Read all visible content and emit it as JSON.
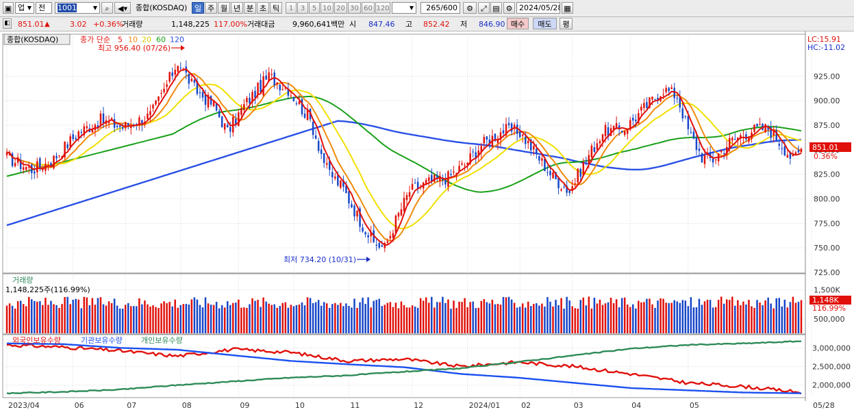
{
  "toolbar": {
    "market": "업",
    "period_short": "전",
    "code": "1001",
    "name": "종합(KOSDAQ)",
    "periods": [
      "일",
      "주",
      "월",
      "년",
      "분",
      "초",
      "틱"
    ],
    "selected_period": "일",
    "intervals": [
      "1",
      "3",
      "5",
      "10",
      "20",
      "30",
      "60",
      "120"
    ],
    "count": "265/600",
    "date": "2024/05/28"
  },
  "quote": {
    "price": "851.01",
    "direction_mark": "▲",
    "change": "3.02",
    "change_pct": "+0.36%",
    "volume_label": "거래량",
    "volume": "1,148,225",
    "volume_ratio": "117.00%",
    "amount_label": "거래대금",
    "amount": "9,960,641백만",
    "open_label": "시",
    "open": "847.46",
    "high_label": "고",
    "high": "852.42",
    "low_label": "저",
    "low": "846.90",
    "buy_label": "매수",
    "sell_label": "매도",
    "eval_label": "평"
  },
  "price_panel": {
    "name_tag": "종합(KOSDAQ)",
    "ma_title": "종가 단순",
    "ma_periods": [
      "5",
      "10",
      "20",
      "60",
      "120"
    ],
    "lc_label": "LC:15.91",
    "hc_label": "HC:-11.02",
    "high_note": "최고 956.40 (07/26)",
    "low_note": "최저 734.20 (10/31)",
    "last_price_tag": "851.01",
    "last_pct_tag": "0.36%"
  },
  "volume_panel": {
    "title": "거래량",
    "value_label": "1,148,225주(116.99%)",
    "last_tag": "1,148K",
    "last_pct": "116.99%"
  },
  "holdings_panel": {
    "legend": [
      "외국인보유수량",
      "기관보유수량",
      "개인보유수량"
    ]
  },
  "colors": {
    "up": "#e0100a",
    "down": "#1646c8",
    "ma5": "#e0100a",
    "ma10": "#f08a0a",
    "ma20": "#f0e000",
    "ma60": "#18a018",
    "ma120": "#2a50e6",
    "foreign": "#e0100a",
    "institution": "#1a50f0",
    "individual": "#2e8b57"
  },
  "chart_data": [
    {
      "type": "candlestick",
      "title": "종합(KOSDAQ)",
      "ylim": [
        725,
        965
      ],
      "y_ticks": [
        "925.00",
        "900.00",
        "875.00",
        "850.00",
        "825.00",
        "800.00",
        "775.00",
        "750.00",
        "725.00"
      ],
      "x_tick_labels": [
        "2023/04",
        "06",
        "07",
        "08",
        "09",
        "10",
        "11",
        "12",
        "2024/01",
        "02",
        "03",
        "04",
        "05",
        "05/28"
      ],
      "series_shape": [
        {
          "x": 0,
          "close": 842
        },
        {
          "x": 9,
          "close": 830
        },
        {
          "x": 16,
          "close": 838
        },
        {
          "x": 26,
          "close": 868
        },
        {
          "x": 34,
          "close": 880
        },
        {
          "x": 42,
          "close": 873
        },
        {
          "x": 52,
          "close": 885
        },
        {
          "x": 56,
          "close": 905
        },
        {
          "x": 62,
          "close": 940
        },
        {
          "x": 68,
          "close": 912
        },
        {
          "x": 75,
          "close": 895
        },
        {
          "x": 80,
          "close": 868
        },
        {
          "x": 86,
          "close": 895
        },
        {
          "x": 95,
          "close": 925
        },
        {
          "x": 102,
          "close": 912
        },
        {
          "x": 110,
          "close": 880
        },
        {
          "x": 116,
          "close": 830
        },
        {
          "x": 122,
          "close": 810
        },
        {
          "x": 128,
          "close": 778
        },
        {
          "x": 133,
          "close": 755
        },
        {
          "x": 137,
          "close": 750
        },
        {
          "x": 141,
          "close": 778
        },
        {
          "x": 146,
          "close": 808
        },
        {
          "x": 152,
          "close": 816
        },
        {
          "x": 160,
          "close": 822
        },
        {
          "x": 166,
          "close": 835
        },
        {
          "x": 172,
          "close": 855
        },
        {
          "x": 180,
          "close": 870
        },
        {
          "x": 186,
          "close": 868
        },
        {
          "x": 192,
          "close": 845
        },
        {
          "x": 198,
          "close": 822
        },
        {
          "x": 204,
          "close": 808
        },
        {
          "x": 210,
          "close": 840
        },
        {
          "x": 216,
          "close": 868
        },
        {
          "x": 224,
          "close": 872
        },
        {
          "x": 232,
          "close": 895
        },
        {
          "x": 238,
          "close": 912
        },
        {
          "x": 243,
          "close": 905
        },
        {
          "x": 247,
          "close": 870
        },
        {
          "x": 252,
          "close": 843
        },
        {
          "x": 256,
          "close": 840
        },
        {
          "x": 262,
          "close": 858
        },
        {
          "x": 270,
          "close": 870
        },
        {
          "x": 276,
          "close": 872
        },
        {
          "x": 281,
          "close": 855
        },
        {
          "x": 285,
          "close": 840
        },
        {
          "x": 287,
          "close": 847.46
        },
        {
          "x": 288,
          "close": 851.01
        }
      ],
      "last": {
        "open": 847.46,
        "high": 852.42,
        "low": 846.9,
        "close": 851.01
      },
      "annotations": [
        {
          "text": "최고 956.40 (07/26)",
          "value": 956.4,
          "date": "07/26"
        },
        {
          "text": "최저 734.20 (10/31)",
          "value": 734.2,
          "date": "10/31"
        }
      ],
      "moving_averages": [
        "5",
        "10",
        "20",
        "60",
        "120"
      ]
    },
    {
      "type": "bar",
      "title": "거래량",
      "y_ticks": [
        "1,500K",
        "500,000"
      ],
      "ylim": [
        0,
        1800000
      ],
      "last_value": 1148225
    },
    {
      "type": "line",
      "title": "외국인보유수량 / 기관보유수량 / 개인보유수량",
      "y_ticks": [
        "3,000,000",
        "2,500,000",
        "2,000,000"
      ],
      "ylim": [
        1700000,
        3300000
      ],
      "series": [
        {
          "name": "외국인보유수량",
          "values": [
            3080000,
            3020000,
            2920000,
            2780000,
            2960000,
            2880000,
            2650000,
            2700000,
            2500000,
            2620000,
            2500000,
            2300000,
            2060000,
            1960000,
            1800000
          ]
        },
        {
          "name": "기관보유수량",
          "values": [
            3120000,
            3100000,
            3000000,
            2950000,
            2800000,
            2650000,
            2560000,
            2480000,
            2300000,
            2200000,
            2060000,
            1920000,
            1860000,
            1800000,
            1780000
          ]
        },
        {
          "name": "개인보유수량",
          "values": [
            1780000,
            1820000,
            1880000,
            2000000,
            2100000,
            2200000,
            2260000,
            2360000,
            2450000,
            2620000,
            2800000,
            2980000,
            3080000,
            3120000,
            3180000
          ]
        }
      ]
    }
  ]
}
